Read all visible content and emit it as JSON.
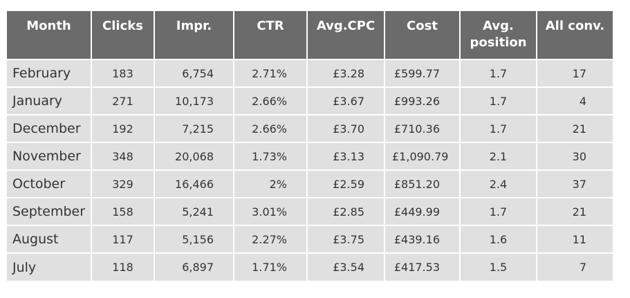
{
  "table": {
    "header": [
      "Month",
      "Clicks",
      "Impr.",
      "CTR",
      "Avg.CPC",
      "Cost",
      "Avg. position",
      "All conv."
    ],
    "rows": [
      [
        "February",
        "183",
        "6,754",
        "2.71%",
        "£3.28",
        "£599.77",
        "1.7",
        "17"
      ],
      [
        "January",
        "271",
        "10,173",
        "2.66%",
        "£3.67",
        "£993.26",
        "1.7",
        "4"
      ],
      [
        "December",
        "192",
        "7,215",
        "2.66%",
        "£3.70",
        "£710.36",
        "1.7",
        "21"
      ],
      [
        "November",
        "348",
        "20,068",
        "1.73%",
        "£3.13",
        "£1,090.79",
        "2.1",
        "30"
      ],
      [
        "October",
        "329",
        "16,466",
        "2%",
        "£2.59",
        "£851.20",
        "2.4",
        "37"
      ],
      [
        "September",
        "158",
        "5,241",
        "3.01%",
        "£2.85",
        "£449.99",
        "1.7",
        "21"
      ],
      [
        "August",
        "117",
        "5,156",
        "2.27%",
        "£3.75",
        "£439.16",
        "1.6",
        "11"
      ],
      [
        "July",
        "118",
        "6,897",
        "1.71%",
        "£3.54",
        "£417.53",
        "1.5",
        "7"
      ]
    ]
  }
}
